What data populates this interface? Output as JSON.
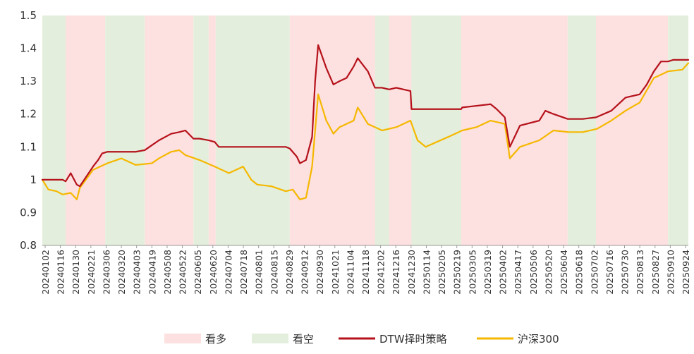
{
  "chart_data": {
    "type": "line",
    "title": "",
    "xlabel": "",
    "ylabel": "",
    "ylim": [
      0.8,
      1.5
    ],
    "y_ticks": [
      0.8,
      0.9,
      1,
      1.1,
      1.2,
      1.3,
      1.4,
      1.5
    ],
    "x_tick_labels": [
      "20240102",
      "20240116",
      "20240130",
      "20240221",
      "20240306",
      "20240320",
      "20240403",
      "20240419",
      "20240508",
      "20240522",
      "20240605",
      "20240620",
      "20240704",
      "20240718",
      "20240801",
      "20240815",
      "20240829",
      "20240912",
      "20240930",
      "20241021",
      "20241104",
      "20241118",
      "20241202",
      "20241216",
      "20241230",
      "20250114",
      "20250205",
      "20250219",
      "20250305",
      "20250319",
      "20250402",
      "20250417",
      "20250506",
      "20250520",
      "20250604",
      "20250618",
      "20250702",
      "20250716",
      "20250730",
      "20250813",
      "20250827",
      "20250910",
      "20250924"
    ],
    "grid": false,
    "legend_position": "bottom",
    "colors": {
      "bull_band": "#fde0e0",
      "bear_band": "#e3efdc",
      "strategy": "#b5121b",
      "index": "#f5b800"
    },
    "regimes": [
      {
        "start": "20240102",
        "end": "20240125",
        "signal": "看空"
      },
      {
        "start": "20240125",
        "end": "20240304",
        "signal": "看多"
      },
      {
        "start": "20240304",
        "end": "20240412",
        "signal": "看空"
      },
      {
        "start": "20240412",
        "end": "20240530",
        "signal": "看多"
      },
      {
        "start": "20240530",
        "end": "20240614",
        "signal": "看空"
      },
      {
        "start": "20240614",
        "end": "20240621",
        "signal": "看多"
      },
      {
        "start": "20240621",
        "end": "20240902",
        "signal": "看空"
      },
      {
        "start": "20240902",
        "end": "20241125",
        "signal": "看多"
      },
      {
        "start": "20241125",
        "end": "20241209",
        "signal": "看空"
      },
      {
        "start": "20241209",
        "end": "20241231",
        "signal": "看多"
      },
      {
        "start": "20241231",
        "end": "20250218",
        "signal": "看空"
      },
      {
        "start": "20250218",
        "end": "20250603",
        "signal": "看多"
      },
      {
        "start": "20250603",
        "end": "20250701",
        "signal": "看空"
      },
      {
        "start": "20250701",
        "end": "20250910",
        "signal": "看多"
      },
      {
        "start": "20250910",
        "end": "20250930",
        "signal": "看空"
      }
    ],
    "series": [
      {
        "name": "DTW择时策略",
        "points": [
          [
            "20240102",
            1.0
          ],
          [
            "20240116",
            1.0
          ],
          [
            "20240122",
            1.0
          ],
          [
            "20240125",
            0.995
          ],
          [
            "20240130",
            1.02
          ],
          [
            "20240205",
            0.985
          ],
          [
            "20240208",
            0.98
          ],
          [
            "20240221",
            1.04
          ],
          [
            "20240226",
            1.06
          ],
          [
            "20240301",
            1.08
          ],
          [
            "20240306",
            1.085
          ],
          [
            "20240320",
            1.085
          ],
          [
            "20240403",
            1.085
          ],
          [
            "20240412",
            1.09
          ],
          [
            "20240419",
            1.105
          ],
          [
            "20240426",
            1.12
          ],
          [
            "20240508",
            1.14
          ],
          [
            "20240516",
            1.145
          ],
          [
            "20240522",
            1.15
          ],
          [
            "20240530",
            1.125
          ],
          [
            "20240605",
            1.125
          ],
          [
            "20240614",
            1.12
          ],
          [
            "20240620",
            1.115
          ],
          [
            "20240624",
            1.1
          ],
          [
            "20240704",
            1.1
          ],
          [
            "20240718",
            1.1
          ],
          [
            "20240801",
            1.1
          ],
          [
            "20240815",
            1.1
          ],
          [
            "20240829",
            1.1
          ],
          [
            "20240902",
            1.095
          ],
          [
            "20240909",
            1.07
          ],
          [
            "20240912",
            1.05
          ],
          [
            "20240918",
            1.06
          ],
          [
            "20240924",
            1.13
          ],
          [
            "20240927",
            1.3
          ],
          [
            "20240930",
            1.41
          ],
          [
            "20241008",
            1.34
          ],
          [
            "20241015",
            1.29
          ],
          [
            "20241021",
            1.3
          ],
          [
            "20241028",
            1.31
          ],
          [
            "20241104",
            1.345
          ],
          [
            "20241108",
            1.37
          ],
          [
            "20241118",
            1.33
          ],
          [
            "20241125",
            1.28
          ],
          [
            "20241202",
            1.28
          ],
          [
            "20241209",
            1.275
          ],
          [
            "20241216",
            1.28
          ],
          [
            "20241230",
            1.27
          ],
          [
            "20241231",
            1.215
          ],
          [
            "20250114",
            1.215
          ],
          [
            "20250205",
            1.215
          ],
          [
            "20250218",
            1.215
          ],
          [
            "20250219",
            1.22
          ],
          [
            "20250305",
            1.225
          ],
          [
            "20250319",
            1.23
          ],
          [
            "20250325",
            1.215
          ],
          [
            "20250402",
            1.19
          ],
          [
            "20250407",
            1.1
          ],
          [
            "20250417",
            1.165
          ],
          [
            "20250506",
            1.18
          ],
          [
            "20250512",
            1.21
          ],
          [
            "20250520",
            1.2
          ],
          [
            "20250603",
            1.185
          ],
          [
            "20250618",
            1.185
          ],
          [
            "20250701",
            1.19
          ],
          [
            "20250716",
            1.21
          ],
          [
            "20250730",
            1.25
          ],
          [
            "20250813",
            1.26
          ],
          [
            "20250820",
            1.29
          ],
          [
            "20250827",
            1.33
          ],
          [
            "20250903",
            1.36
          ],
          [
            "20250910",
            1.36
          ],
          [
            "20250915",
            1.365
          ],
          [
            "20250924",
            1.365
          ],
          [
            "20250930",
            1.365
          ]
        ]
      },
      {
        "name": "沪深300",
        "points": [
          [
            "20240102",
            1.0
          ],
          [
            "20240108",
            0.97
          ],
          [
            "20240116",
            0.965
          ],
          [
            "20240122",
            0.955
          ],
          [
            "20240130",
            0.96
          ],
          [
            "20240205",
            0.94
          ],
          [
            "20240208",
            0.975
          ],
          [
            "20240221",
            1.03
          ],
          [
            "20240306",
            1.05
          ],
          [
            "20240320",
            1.065
          ],
          [
            "20240403",
            1.045
          ],
          [
            "20240419",
            1.05
          ],
          [
            "20240426",
            1.065
          ],
          [
            "20240508",
            1.085
          ],
          [
            "20240516",
            1.09
          ],
          [
            "20240522",
            1.075
          ],
          [
            "20240605",
            1.06
          ],
          [
            "20240620",
            1.04
          ],
          [
            "20240704",
            1.02
          ],
          [
            "20240718",
            1.04
          ],
          [
            "20240726",
            1.0
          ],
          [
            "20240801",
            0.985
          ],
          [
            "20240815",
            0.98
          ],
          [
            "20240829",
            0.965
          ],
          [
            "20240905",
            0.97
          ],
          [
            "20240912",
            0.94
          ],
          [
            "20240918",
            0.945
          ],
          [
            "20240924",
            1.04
          ],
          [
            "20240930",
            1.26
          ],
          [
            "20241008",
            1.18
          ],
          [
            "20241015",
            1.14
          ],
          [
            "20241021",
            1.16
          ],
          [
            "20241104",
            1.18
          ],
          [
            "20241108",
            1.22
          ],
          [
            "20241118",
            1.17
          ],
          [
            "20241202",
            1.15
          ],
          [
            "20241216",
            1.16
          ],
          [
            "20241230",
            1.18
          ],
          [
            "20250106",
            1.12
          ],
          [
            "20250114",
            1.1
          ],
          [
            "20250205",
            1.13
          ],
          [
            "20250219",
            1.15
          ],
          [
            "20250305",
            1.16
          ],
          [
            "20250319",
            1.18
          ],
          [
            "20250402",
            1.17
          ],
          [
            "20250407",
            1.065
          ],
          [
            "20250417",
            1.1
          ],
          [
            "20250506",
            1.12
          ],
          [
            "20250520",
            1.15
          ],
          [
            "20250604",
            1.145
          ],
          [
            "20250618",
            1.145
          ],
          [
            "20250702",
            1.155
          ],
          [
            "20250716",
            1.18
          ],
          [
            "20250730",
            1.21
          ],
          [
            "20250813",
            1.235
          ],
          [
            "20250827",
            1.31
          ],
          [
            "20250903",
            1.32
          ],
          [
            "20250910",
            1.33
          ],
          [
            "20250924",
            1.335
          ],
          [
            "20250930",
            1.355
          ]
        ]
      }
    ],
    "legend": [
      {
        "label": "看多",
        "kind": "band",
        "color": "#fde0e0"
      },
      {
        "label": "看空",
        "kind": "band",
        "color": "#e3efdc"
      },
      {
        "label": "DTW择时策略",
        "kind": "line",
        "color": "#b5121b"
      },
      {
        "label": "沪深300",
        "kind": "line",
        "color": "#f5b800"
      }
    ]
  }
}
